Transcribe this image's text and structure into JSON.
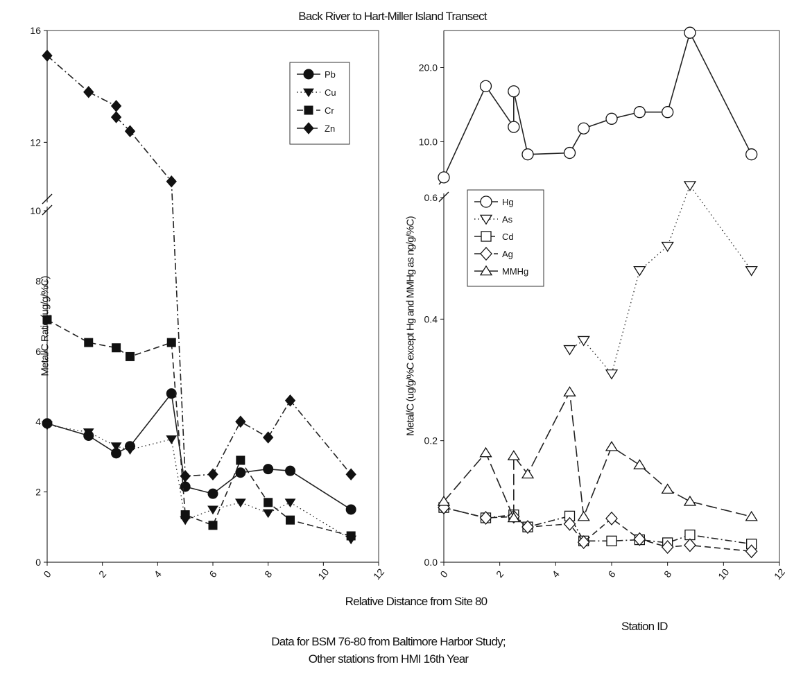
{
  "title": "Back River to Hart-Miller Island Transect",
  "xlabel": "Relative Distance from Site 80",
  "station_label": "Station ID",
  "note_line1": "Data for BSM 76-80 from Baltimore Harbor Study;",
  "note_line2": "Other stations from HMI 16th Year",
  "chart_data": [
    {
      "type": "line",
      "ylabel": "Metal/C Ratio (ug/g/%C)",
      "xlim": [
        0,
        12
      ],
      "ylim_lower": [
        0,
        10
      ],
      "ylim_upper": [
        10,
        16
      ],
      "x_ticks": [
        0,
        2,
        4,
        6,
        8,
        10,
        12
      ],
      "y_ticks": [
        0,
        2,
        4,
        6,
        8,
        10,
        12,
        16
      ],
      "legend": "top-right",
      "series": [
        {
          "name": "Pb",
          "marker": "circle",
          "dash": "solid",
          "x": [
            0,
            1.5,
            2.5,
            3,
            4.5,
            5,
            6,
            7,
            8,
            8.8,
            11
          ],
          "y": [
            3.95,
            3.6,
            3.1,
            3.3,
            4.8,
            2.15,
            1.95,
            2.55,
            2.65,
            2.6,
            1.5
          ]
        },
        {
          "name": "Cu",
          "marker": "triangle-down",
          "dash": "dotted",
          "x": [
            0,
            1.5,
            2.5,
            3,
            4.5,
            5,
            6,
            7,
            8,
            8.8,
            11
          ],
          "y": [
            3.9,
            3.7,
            3.3,
            3.2,
            3.5,
            1.2,
            1.5,
            1.7,
            1.4,
            1.7,
            0.65
          ]
        },
        {
          "name": "Cr",
          "marker": "square",
          "dash": "dashed",
          "x": [
            0,
            1.5,
            2.5,
            3,
            4.5,
            5,
            6,
            7,
            8,
            8.8,
            11
          ],
          "y": [
            6.9,
            6.25,
            6.1,
            5.85,
            6.25,
            1.35,
            1.05,
            2.9,
            1.7,
            1.2,
            0.75
          ]
        },
        {
          "name": "Zn",
          "marker": "diamond",
          "dash": "dash-dot",
          "x": [
            0,
            1.5,
            2.5,
            2.5,
            3,
            4.5,
            5,
            6,
            7,
            8,
            8.8,
            11
          ],
          "y": [
            15.1,
            13.8,
            13.3,
            12.9,
            12.4,
            10.6,
            2.45,
            2.5,
            4.0,
            3.55,
            4.6,
            2.5
          ]
        }
      ]
    },
    {
      "type": "line",
      "ylabel": "Metal/C (ug/g/%C except Hg and MMHg as ng/g/%C)",
      "xlim": [
        0,
        12
      ],
      "ylim_lower": [
        0,
        0.6
      ],
      "ylim_upper": [
        5,
        25
      ],
      "x_ticks": [
        0,
        2,
        4,
        6,
        8,
        10,
        12
      ],
      "y_ticks_lower": [
        "0.0",
        "0.2",
        "0.4",
        "0.6"
      ],
      "y_ticks_upper": [
        "10.0",
        "20.0"
      ],
      "legend": "upper-left of lower panel",
      "series": [
        {
          "name": "Hg",
          "marker": "circle-open",
          "dash": "solid",
          "axis": "upper",
          "x": [
            0,
            1.5,
            2.5,
            2.5,
            3,
            4.5,
            5,
            6,
            7,
            8,
            8.8,
            11
          ],
          "y": [
            5.2,
            17.5,
            12.0,
            16.8,
            8.3,
            8.5,
            11.8,
            13.1,
            14.0,
            14.0,
            24.7,
            8.3
          ]
        },
        {
          "name": "As",
          "marker": "triangle-down-open",
          "dash": "dotted",
          "axis": "lower",
          "x": [
            4.5,
            5,
            6,
            7,
            8,
            8.8,
            11
          ],
          "y": [
            0.35,
            0.365,
            0.31,
            0.48,
            0.52,
            0.62,
            0.48
          ]
        },
        {
          "name": "Cd",
          "marker": "square-open",
          "dash": "dash-dot",
          "axis": "lower",
          "x": [
            0,
            1.5,
            2.5,
            3,
            4.5,
            5,
            6,
            7,
            8,
            8.8,
            11
          ],
          "y": [
            0.09,
            0.073,
            0.078,
            0.058,
            0.076,
            0.035,
            0.035,
            0.037,
            0.032,
            0.045,
            0.03
          ]
        },
        {
          "name": "Ag",
          "marker": "diamond-open",
          "dash": "dashed",
          "axis": "lower",
          "x": [
            0,
            1.5,
            2.5,
            3,
            4.5,
            5,
            6,
            7,
            8,
            8.8,
            11
          ],
          "y": [
            0.09,
            0.073,
            0.075,
            0.058,
            0.063,
            0.033,
            0.072,
            0.038,
            0.025,
            0.028,
            0.018
          ]
        },
        {
          "name": "MMHg",
          "marker": "triangle-up-open",
          "dash": "long-dash",
          "axis": "lower",
          "x": [
            0,
            1.5,
            2.5,
            2.5,
            3,
            4.5,
            5,
            6,
            7,
            8,
            8.8,
            11
          ],
          "y": [
            0.1,
            0.18,
            0.073,
            0.175,
            0.145,
            0.28,
            0.075,
            0.19,
            0.16,
            0.12,
            0.1,
            0.075
          ]
        }
      ]
    }
  ]
}
